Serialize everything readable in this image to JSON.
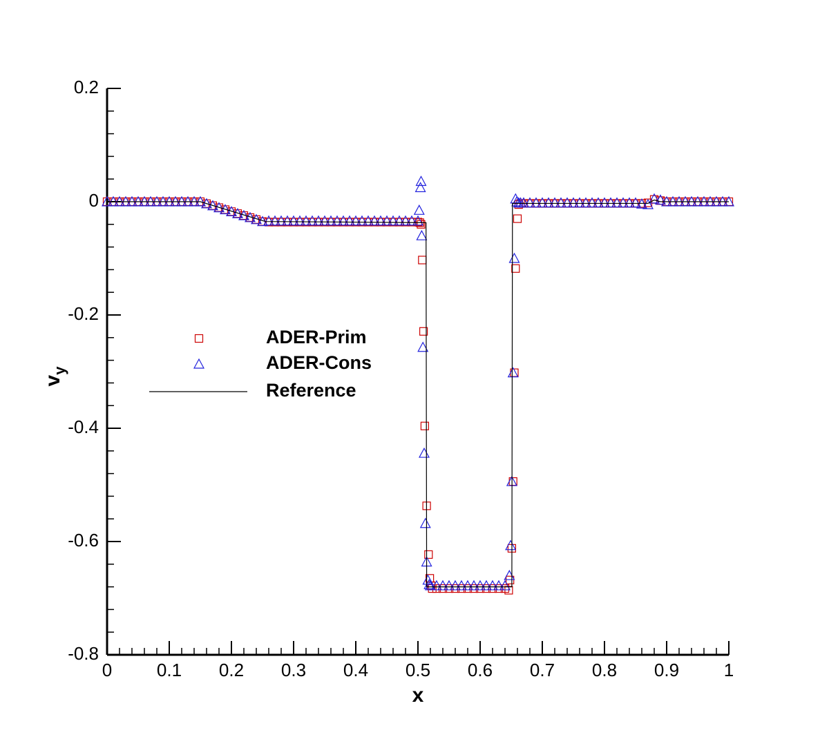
{
  "chart_data": {
    "type": "scatter",
    "xlabel": "x",
    "ylabel": {
      "text": "v",
      "subscript": "y"
    },
    "xlim": [
      0,
      1
    ],
    "ylim": [
      -0.8,
      0.2
    ],
    "xticks": [
      0,
      0.1,
      0.2,
      0.3,
      0.4,
      0.5,
      0.6,
      0.7,
      0.8,
      0.9,
      1
    ],
    "yticks": [
      -0.8,
      -0.6,
      -0.4,
      -0.2,
      0,
      0.2
    ],
    "xminorticks": [
      0.02,
      0.04,
      0.06,
      0.08,
      0.12,
      0.14,
      0.16,
      0.18,
      0.22,
      0.24,
      0.26,
      0.28,
      0.32,
      0.34,
      0.36,
      0.38,
      0.42,
      0.44,
      0.46,
      0.48,
      0.52,
      0.54,
      0.56,
      0.58,
      0.62,
      0.64,
      0.66,
      0.68,
      0.72,
      0.74,
      0.76,
      0.78,
      0.82,
      0.84,
      0.86,
      0.88,
      0.92,
      0.94,
      0.96,
      0.98
    ],
    "yminorticks": [
      -0.76,
      -0.72,
      -0.68,
      -0.64,
      -0.56,
      -0.52,
      -0.48,
      -0.44,
      -0.36,
      -0.32,
      -0.28,
      -0.24,
      -0.16,
      -0.12,
      -0.08,
      -0.04,
      0.04,
      0.08,
      0.12,
      0.16
    ],
    "grid": false,
    "series": [
      {
        "name": "ADER-Prim",
        "color": "#cc0000",
        "marker": "square",
        "x": [
          0,
          0.01,
          0.02,
          0.03,
          0.04,
          0.05,
          0.06,
          0.07,
          0.08,
          0.09,
          0.1,
          0.11,
          0.12,
          0.13,
          0.14,
          0.15,
          0.16,
          0.17,
          0.18,
          0.19,
          0.2,
          0.21,
          0.22,
          0.23,
          0.24,
          0.25,
          0.26,
          0.27,
          0.28,
          0.29,
          0.3,
          0.31,
          0.32,
          0.33,
          0.34,
          0.35,
          0.36,
          0.37,
          0.38,
          0.39,
          0.4,
          0.41,
          0.42,
          0.43,
          0.44,
          0.45,
          0.46,
          0.47,
          0.48,
          0.49,
          0.5,
          0.503,
          0.505,
          0.507,
          0.509,
          0.511,
          0.514,
          0.517,
          0.519,
          0.521,
          0.523,
          0.53,
          0.54,
          0.55,
          0.56,
          0.57,
          0.58,
          0.59,
          0.6,
          0.61,
          0.62,
          0.63,
          0.64,
          0.646,
          0.648,
          0.651,
          0.653,
          0.655,
          0.657,
          0.66,
          0.662,
          0.665,
          0.67,
          0.68,
          0.69,
          0.7,
          0.71,
          0.72,
          0.73,
          0.74,
          0.75,
          0.76,
          0.77,
          0.78,
          0.79,
          0.8,
          0.81,
          0.82,
          0.83,
          0.84,
          0.85,
          0.86,
          0.87,
          0.88,
          0.89,
          0.9,
          0.91,
          0.92,
          0.93,
          0.94,
          0.95,
          0.96,
          0.97,
          0.98,
          0.99,
          1
        ],
        "values": [
          0,
          0,
          0,
          0,
          0,
          0,
          0,
          0,
          0,
          0,
          0,
          0,
          0,
          0,
          0,
          0,
          -0.0035,
          -0.007,
          -0.0105,
          -0.014,
          -0.0175,
          -0.021,
          -0.0245,
          -0.028,
          -0.0315,
          -0.035,
          -0.036,
          -0.036,
          -0.036,
          -0.036,
          -0.036,
          -0.036,
          -0.036,
          -0.036,
          -0.036,
          -0.036,
          -0.036,
          -0.036,
          -0.036,
          -0.036,
          -0.036,
          -0.036,
          -0.036,
          -0.036,
          -0.036,
          -0.036,
          -0.036,
          -0.036,
          -0.036,
          -0.036,
          -0.036,
          -0.037,
          -0.04,
          -0.103,
          -0.229,
          -0.396,
          -0.537,
          -0.623,
          -0.665,
          -0.678,
          -0.683,
          -0.683,
          -0.683,
          -0.683,
          -0.683,
          -0.683,
          -0.683,
          -0.683,
          -0.683,
          -0.683,
          -0.683,
          -0.683,
          -0.683,
          -0.686,
          -0.668,
          -0.612,
          -0.494,
          -0.302,
          -0.118,
          -0.03,
          -0.005,
          -0.003,
          -0.003,
          -0.003,
          -0.003,
          -0.003,
          -0.003,
          -0.003,
          -0.003,
          -0.003,
          -0.003,
          -0.003,
          -0.003,
          -0.003,
          -0.003,
          -0.003,
          -0.003,
          -0.003,
          -0.003,
          -0.003,
          -0.003,
          -0.003,
          -0.002,
          0.004,
          0.002,
          0,
          0,
          0,
          0,
          0,
          0,
          0,
          0,
          0,
          0,
          0
        ]
      },
      {
        "name": "ADER-Cons",
        "color": "#2222dd",
        "marker": "triangle",
        "x": [
          0,
          0.01,
          0.02,
          0.03,
          0.04,
          0.05,
          0.06,
          0.07,
          0.08,
          0.09,
          0.1,
          0.11,
          0.12,
          0.13,
          0.14,
          0.15,
          0.16,
          0.17,
          0.18,
          0.19,
          0.2,
          0.21,
          0.22,
          0.23,
          0.24,
          0.25,
          0.26,
          0.27,
          0.28,
          0.29,
          0.3,
          0.31,
          0.32,
          0.33,
          0.34,
          0.35,
          0.36,
          0.37,
          0.38,
          0.39,
          0.4,
          0.41,
          0.42,
          0.43,
          0.44,
          0.45,
          0.46,
          0.47,
          0.48,
          0.49,
          0.5,
          0.502,
          0.504,
          0.505,
          0.506,
          0.508,
          0.51,
          0.512,
          0.514,
          0.516,
          0.518,
          0.52,
          0.53,
          0.54,
          0.55,
          0.56,
          0.57,
          0.58,
          0.59,
          0.6,
          0.61,
          0.62,
          0.63,
          0.64,
          0.647,
          0.649,
          0.651,
          0.653,
          0.655,
          0.657,
          0.659,
          0.662,
          0.665,
          0.67,
          0.68,
          0.69,
          0.7,
          0.71,
          0.72,
          0.73,
          0.74,
          0.75,
          0.76,
          0.77,
          0.78,
          0.79,
          0.8,
          0.81,
          0.82,
          0.83,
          0.84,
          0.85,
          0.86,
          0.87,
          0.88,
          0.89,
          0.9,
          0.91,
          0.92,
          0.93,
          0.94,
          0.95,
          0.96,
          0.97,
          0.98,
          0.99,
          1
        ],
        "values": [
          0,
          0,
          0,
          0,
          0,
          0,
          0,
          0,
          0,
          0,
          0,
          0,
          0,
          0,
          0,
          0,
          -0.0035,
          -0.007,
          -0.0105,
          -0.014,
          -0.0175,
          -0.021,
          -0.0245,
          -0.028,
          -0.0315,
          -0.035,
          -0.034,
          -0.034,
          -0.034,
          -0.034,
          -0.034,
          -0.034,
          -0.034,
          -0.034,
          -0.034,
          -0.034,
          -0.034,
          -0.034,
          -0.034,
          -0.034,
          -0.034,
          -0.034,
          -0.034,
          -0.034,
          -0.034,
          -0.034,
          -0.034,
          -0.034,
          -0.034,
          -0.034,
          -0.034,
          -0.015,
          0.025,
          0.036,
          -0.06,
          -0.257,
          -0.444,
          -0.568,
          -0.636,
          -0.668,
          -0.676,
          -0.678,
          -0.678,
          -0.678,
          -0.678,
          -0.678,
          -0.678,
          -0.678,
          -0.678,
          -0.678,
          -0.678,
          -0.678,
          -0.678,
          -0.678,
          -0.66,
          -0.607,
          -0.494,
          -0.302,
          -0.1,
          0.005,
          0,
          -0.002,
          -0.002,
          -0.002,
          -0.002,
          -0.002,
          -0.002,
          -0.002,
          -0.002,
          -0.002,
          -0.002,
          -0.002,
          -0.002,
          -0.002,
          -0.002,
          -0.002,
          -0.002,
          -0.002,
          -0.002,
          -0.002,
          -0.002,
          -0.002,
          -0.004,
          -0.005,
          0.005,
          0.003,
          0,
          0,
          0,
          0,
          0,
          0,
          0,
          0,
          0,
          0,
          0
        ]
      },
      {
        "name": "Reference",
        "color": "#000000",
        "marker": "line",
        "x": [
          0,
          0.15,
          0.255,
          0.513,
          0.514,
          0.651,
          0.652,
          0.87,
          0.88,
          0.89,
          1
        ],
        "values": [
          0,
          0,
          -0.035,
          -0.037,
          -0.68,
          -0.68,
          -0.003,
          -0.003,
          0.003,
          0,
          0
        ]
      }
    ]
  }
}
